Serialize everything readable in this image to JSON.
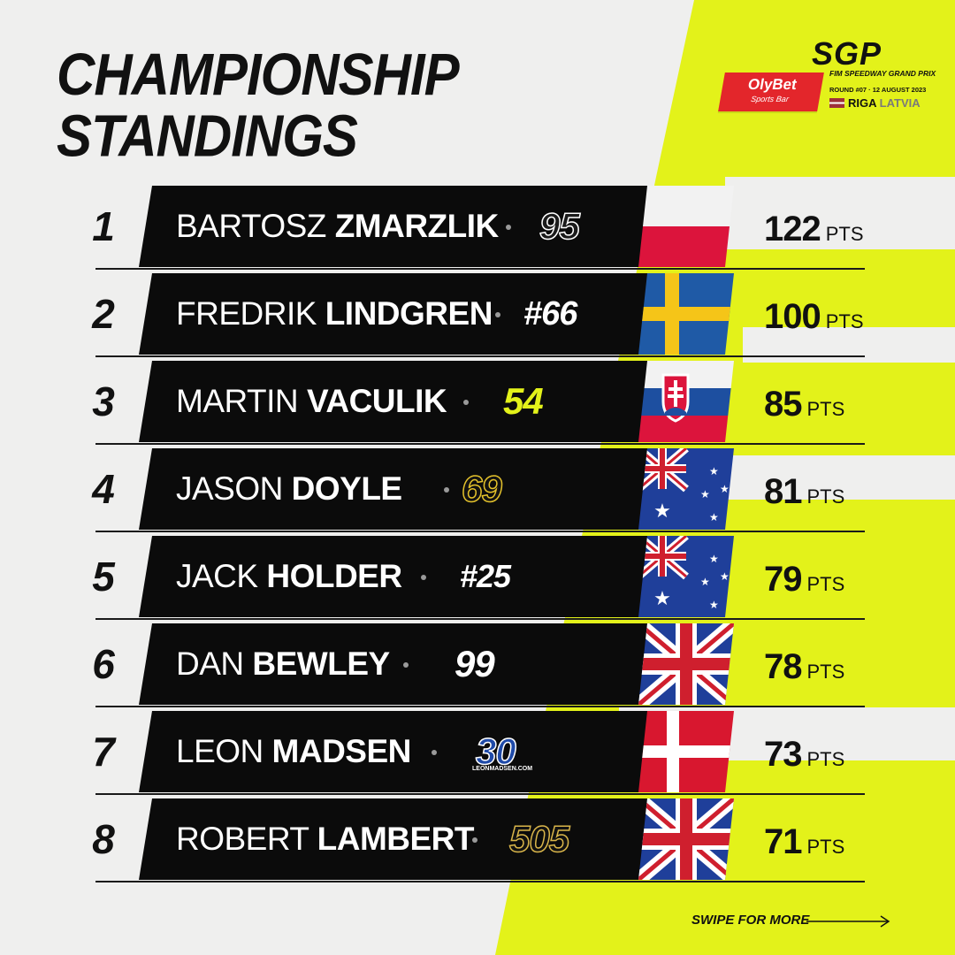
{
  "title": {
    "line1": "CHAMPIONSHIP",
    "line2": "STANDINGS"
  },
  "logo": {
    "sponsor": "OlyBet",
    "sponsor_sub": "Sports Bar",
    "mark": "SGP",
    "subtitle": "FIM SPEEDWAY GRAND PRIX",
    "round_info": "ROUND #07 · 12 AUGUST 2023",
    "city": "RIGA",
    "country": "LATVIA"
  },
  "standings": [
    {
      "position": "1",
      "first_name": "BARTOSZ",
      "last_name": "ZMARZLIK",
      "number": "95",
      "flag": "poland",
      "points": "122",
      "points_unit": "PTS"
    },
    {
      "position": "2",
      "first_name": "FREDRIK",
      "last_name": "LINDGREN",
      "number": "#66",
      "flag": "sweden",
      "points": "100",
      "points_unit": "PTS"
    },
    {
      "position": "3",
      "first_name": "MARTIN",
      "last_name": "VACULIK",
      "number": "54",
      "flag": "slovakia",
      "points": "85",
      "points_unit": "PTS"
    },
    {
      "position": "4",
      "first_name": "JASON",
      "last_name": "DOYLE",
      "number": "69",
      "flag": "australia",
      "points": "81",
      "points_unit": "PTS"
    },
    {
      "position": "5",
      "first_name": "JACK",
      "last_name": "HOLDER",
      "number": "#25",
      "flag": "australia",
      "points": "79",
      "points_unit": "PTS"
    },
    {
      "position": "6",
      "first_name": "DAN",
      "last_name": "BEWLEY",
      "number": "99",
      "flag": "united-kingdom",
      "points": "78",
      "points_unit": "PTS"
    },
    {
      "position": "7",
      "first_name": "LEON",
      "last_name": "MADSEN",
      "number": "30",
      "number_sub": "LEONMADSEN.COM",
      "flag": "denmark",
      "points": "73",
      "points_unit": "PTS"
    },
    {
      "position": "8",
      "first_name": "ROBERT",
      "last_name": "LAMBERT",
      "number": "505",
      "flag": "united-kingdom",
      "points": "71",
      "points_unit": "PTS"
    }
  ],
  "footer": {
    "swipe_label": "SWIPE FOR MORE"
  },
  "colors": {
    "accent": "#e3f21a",
    "background": "#efefee",
    "bar": "#0b0b0b",
    "sponsor_red": "#e3262b"
  }
}
